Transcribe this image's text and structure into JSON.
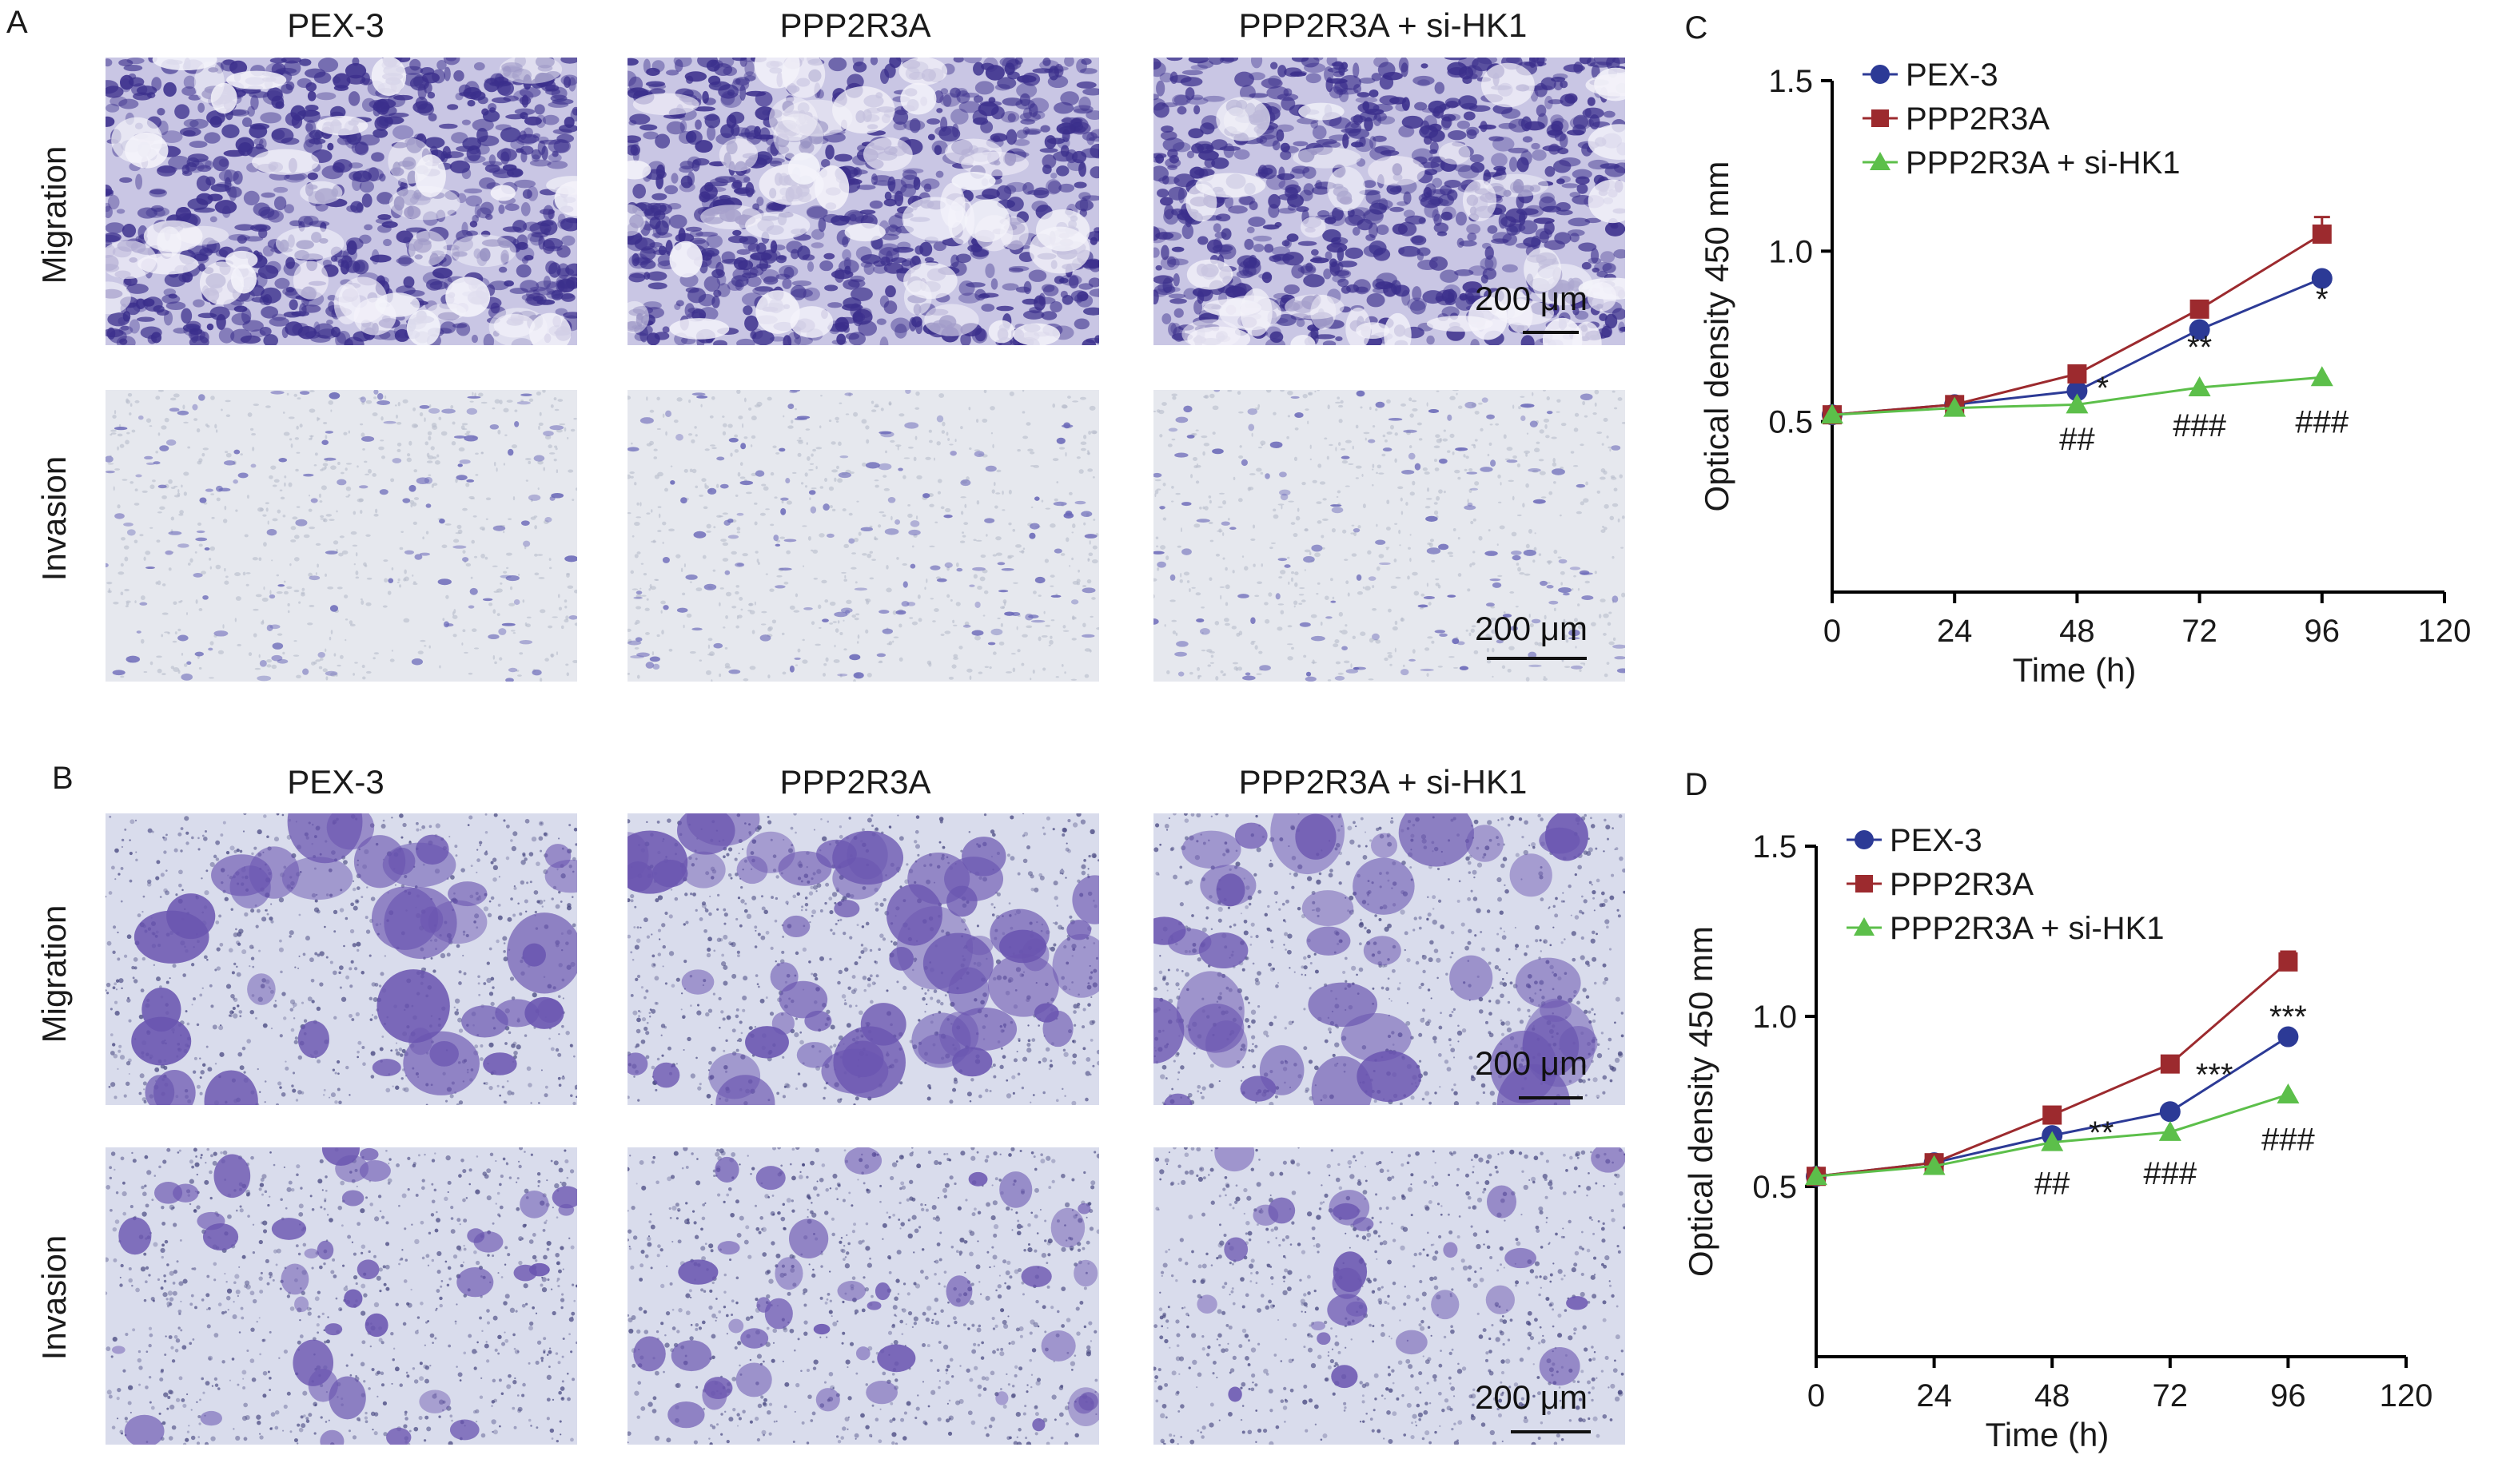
{
  "panels": {
    "A": {
      "letter": "A",
      "columns": [
        "PEX-3",
        "PPP2R3A",
        "PPP2R3A + si-HK1"
      ],
      "rows": [
        "Migration",
        "Invasion"
      ],
      "scale_bar": "200 μm"
    },
    "B": {
      "letter": "B",
      "columns": [
        "PEX-3",
        "PPP2R3A",
        "PPP2R3A + si-HK1"
      ],
      "rows": [
        "Migration",
        "Invasion"
      ],
      "scale_bar": "200 μm"
    }
  },
  "colors": {
    "stain_dark": "#3b2f8c",
    "stain_light": "#d9dcec",
    "series_pex3": "#2c3a96",
    "series_ppp2r3a": "#9c2a2e",
    "series_sihk1": "#5cbf4a"
  },
  "chart_data": [
    {
      "panel": "C",
      "type": "line",
      "xlabel": "Time (h)",
      "ylabel": "Optical density 450 mm",
      "xlim": [
        0,
        120
      ],
      "ylim": [
        0,
        1.5
      ],
      "xticks": [
        "0",
        "24",
        "48",
        "72",
        "96",
        "120"
      ],
      "yticks": [
        "0.5",
        "1.0",
        "1.5"
      ],
      "x": [
        0,
        24,
        48,
        72,
        96
      ],
      "series": [
        {
          "name": "PEX-3",
          "marker": "circle",
          "values": [
            0.52,
            0.55,
            0.59,
            0.77,
            0.92
          ]
        },
        {
          "name": "PPP2R3A",
          "marker": "square",
          "values": [
            0.52,
            0.55,
            0.64,
            0.83,
            1.05
          ],
          "error": [
            0,
            0,
            0,
            0,
            0.05
          ]
        },
        {
          "name": "PPP2R3A + si-HK1",
          "marker": "triangle",
          "values": [
            0.52,
            0.54,
            0.55,
            0.6,
            0.63
          ]
        }
      ],
      "annotations": [
        {
          "text": "*",
          "x": 53,
          "y": 0.6
        },
        {
          "text": "**",
          "x": 72,
          "y": 0.72
        },
        {
          "text": "*",
          "x": 96,
          "y": 0.86
        },
        {
          "text": "##",
          "x": 48,
          "y": 0.45
        },
        {
          "text": "###",
          "x": 72,
          "y": 0.49
        },
        {
          "text": "###",
          "x": 96,
          "y": 0.5
        }
      ]
    },
    {
      "panel": "D",
      "type": "line",
      "xlabel": "Time (h)",
      "ylabel": "Optical density 450 mm",
      "xlim": [
        0,
        120
      ],
      "ylim": [
        0,
        1.5
      ],
      "xticks": [
        "0",
        "24",
        "48",
        "72",
        "96",
        "120"
      ],
      "yticks": [
        "0.5",
        "1.0",
        "1.5"
      ],
      "x": [
        0,
        24,
        48,
        72,
        96
      ],
      "series": [
        {
          "name": "PEX-3",
          "marker": "circle",
          "values": [
            0.53,
            0.57,
            0.65,
            0.72,
            0.94
          ]
        },
        {
          "name": "PPP2R3A",
          "marker": "square",
          "values": [
            0.53,
            0.57,
            0.71,
            0.86,
            1.16
          ],
          "error": [
            0,
            0,
            0,
            0,
            0.03
          ]
        },
        {
          "name": "PPP2R3A + si-HK1",
          "marker": "triangle",
          "values": [
            0.53,
            0.56,
            0.63,
            0.66,
            0.77
          ]
        }
      ],
      "annotations": [
        {
          "text": "**",
          "x": 58,
          "y": 0.66
        },
        {
          "text": "***",
          "x": 81,
          "y": 0.83
        },
        {
          "text": "***",
          "x": 96,
          "y": 1.0
        },
        {
          "text": "##",
          "x": 48,
          "y": 0.51
        },
        {
          "text": "###",
          "x": 72,
          "y": 0.54
        },
        {
          "text": "###",
          "x": 96,
          "y": 0.64
        }
      ]
    }
  ]
}
